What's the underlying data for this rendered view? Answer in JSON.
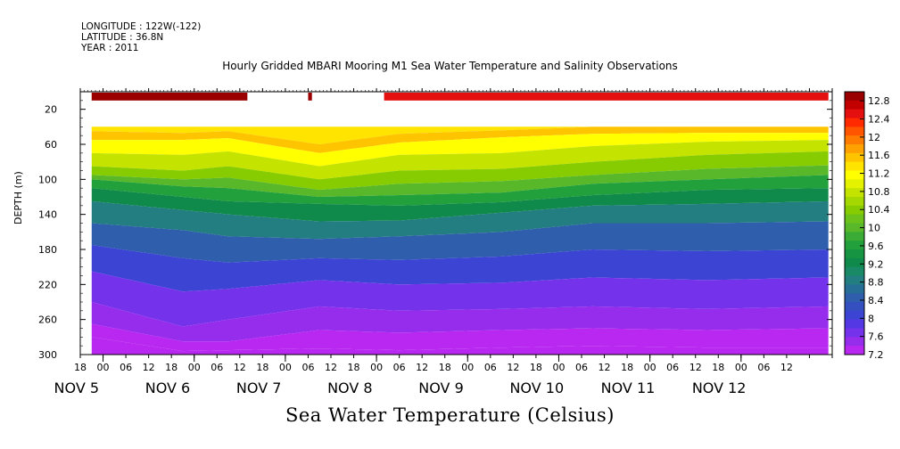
{
  "header": {
    "longitude": "LONGITUDE : 122W(-122)",
    "latitude": "LATITUDE : 36.8N",
    "year": "YEAR : 2011",
    "title": "Hourly Gridded MBARI Mooring M1 Sea Water Temperature and Salinity Observations"
  },
  "chart_data": {
    "type": "heatmap",
    "title": "Hourly Gridded MBARI Mooring M1 Sea Water Temperature and Salinity Observations",
    "xlabel": "Sea Water Temperature (Celsius)",
    "ylabel": "DEPTH (m)",
    "x_hour_ticks": [
      "18",
      "00",
      "06",
      "12",
      "18",
      "00",
      "06",
      "12",
      "18",
      "00",
      "06",
      "12",
      "18",
      "00",
      "06",
      "12",
      "18",
      "00",
      "06",
      "12",
      "18",
      "00",
      "06",
      "12",
      "18",
      "00",
      "06",
      "12",
      "18",
      "00",
      "06",
      "12"
    ],
    "day_labels": [
      "NOV  5",
      "NOV  6",
      "NOV  7",
      "NOV  8",
      "NOV  9",
      "NOV 10",
      "NOV 11",
      "NOV 12"
    ],
    "y_ticks": [
      20,
      60,
      100,
      140,
      180,
      220,
      260,
      300
    ],
    "ylim": [
      300,
      0
    ],
    "y_axis_inverted": true,
    "colorbar": {
      "tick_labels": [
        "12.8",
        "12.4",
        "12",
        "11.6",
        "11.2",
        "10.8",
        "10.4",
        "10",
        "9.6",
        "9.2",
        "8.8",
        "8.4",
        "8",
        "7.6",
        "7.2"
      ],
      "range": [
        7.2,
        13.0
      ],
      "colors": [
        "#9a0000",
        "#c30000",
        "#e40f0f",
        "#ff2a00",
        "#ff5500",
        "#ff7c00",
        "#ffa100",
        "#ffc400",
        "#ffe400",
        "#ffff00",
        "#e4f200",
        "#c4e400",
        "#a4d800",
        "#86cc00",
        "#6cc21a",
        "#58b82a",
        "#3aac36",
        "#22a03c",
        "#169442",
        "#108a4a",
        "#1a8a66",
        "#227e80",
        "#276e96",
        "#2e5eac",
        "#3450c0",
        "#3c44d4",
        "#5438e4",
        "#7432ea",
        "#962cec",
        "#b828f0"
      ]
    },
    "surface_segments": [
      {
        "start": "Nov 4 21:00",
        "end": "Nov 6 14:00",
        "value": 12.9
      },
      {
        "start": "Nov 7 06:00",
        "end": "Nov 7 07:00",
        "value": 12.9
      },
      {
        "start": "Nov 8 02:00",
        "end": "Nov 12 23:00",
        "value": 12.5
      }
    ],
    "profile_top_depth": 40,
    "isotherm_depths": [
      {
        "label": "Nov 4 21:00",
        "depths": [
          45,
          55,
          70,
          85,
          95,
          100,
          110,
          125,
          150,
          175,
          205,
          240,
          265,
          280
        ]
      },
      {
        "label": "Nov 5 21:00",
        "depths": [
          47,
          55,
          72,
          90,
          100,
          108,
          120,
          135,
          158,
          190,
          228,
          268,
          285,
          296
        ]
      },
      {
        "label": "Nov 6 09:00",
        "depths": [
          45,
          53,
          68,
          85,
          98,
          110,
          125,
          140,
          165,
          195,
          225,
          260,
          285,
          295
        ]
      },
      {
        "label": "Nov 7 09:00",
        "depths": [
          60,
          70,
          85,
          100,
          112,
          120,
          128,
          148,
          168,
          190,
          215,
          245,
          272,
          293
        ]
      },
      {
        "label": "Nov 8 06:00",
        "depths": [
          48,
          58,
          72,
          90,
          105,
          118,
          130,
          147,
          165,
          192,
          220,
          250,
          275,
          295
        ]
      },
      {
        "label": "Nov 9 09:00",
        "depths": [
          44,
          52,
          70,
          88,
          102,
          115,
          126,
          138,
          160,
          188,
          218,
          248,
          272,
          292
        ]
      },
      {
        "label": "Nov 10 09:00",
        "depths": [
          40,
          48,
          62,
          80,
          95,
          105,
          118,
          130,
          150,
          180,
          212,
          245,
          270,
          290
        ]
      },
      {
        "label": "Nov 11 15:00",
        "depths": [
          40,
          47,
          57,
          72,
          88,
          100,
          112,
          128,
          150,
          182,
          215,
          248,
          272,
          292
        ]
      },
      {
        "label": "Nov 12 23:00",
        "depths": [
          40,
          47,
          55,
          68,
          84,
          95,
          110,
          125,
          148,
          180,
          212,
          245,
          270,
          292
        ]
      }
    ],
    "isotherm_values": [
      11.6,
      11.2,
      10.8,
      10.4,
      10.0,
      9.6,
      9.2,
      8.8,
      8.4,
      8.0,
      7.6,
      7.4,
      7.3,
      7.2
    ],
    "surface_layer_value": 11.3,
    "grid": false,
    "legend": "right (colorbar)"
  }
}
